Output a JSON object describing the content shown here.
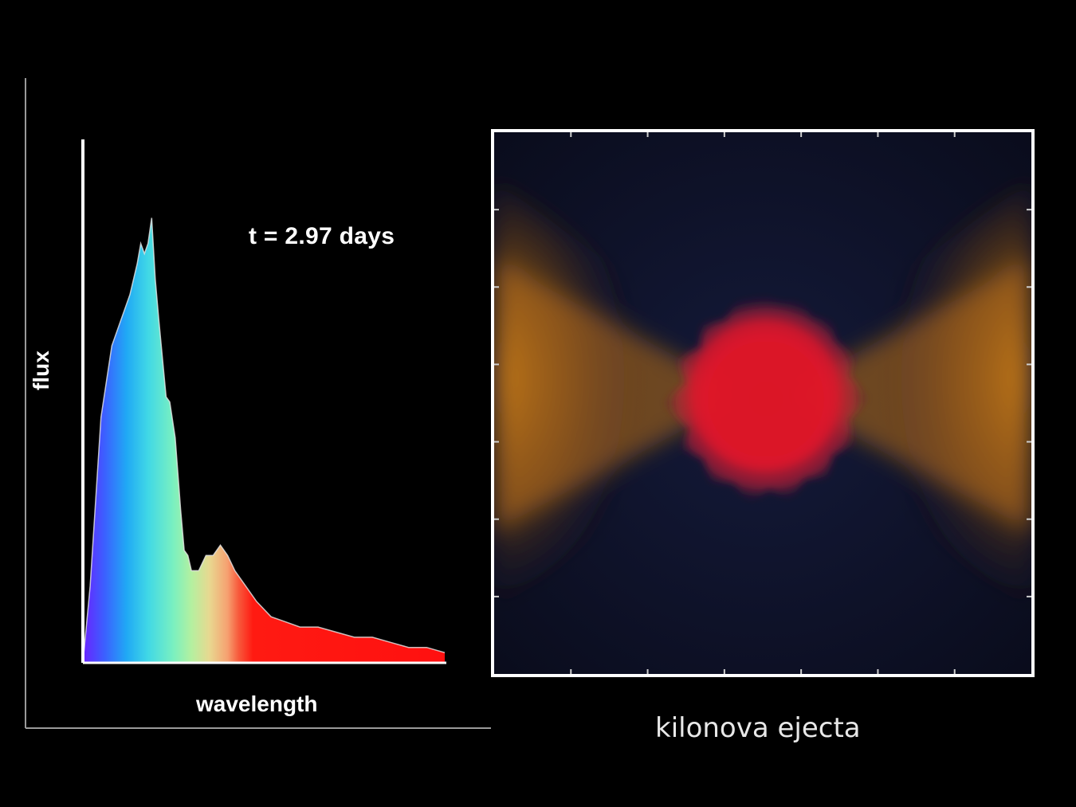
{
  "chart_data": [
    {
      "type": "area",
      "title": "",
      "annotation": "t = 2.97 days",
      "xlabel": "wavelength",
      "ylabel": "flux",
      "xlim": [
        0,
        1
      ],
      "ylim": [
        0,
        1
      ],
      "grid": false,
      "fill": "rainbow gradient (violet to red) by wavelength",
      "series": [
        {
          "x": [
            0.0,
            0.02,
            0.05,
            0.08,
            0.1,
            0.13,
            0.15,
            0.16,
            0.17,
            0.18,
            0.19,
            0.2,
            0.21,
            0.23,
            0.24,
            0.255,
            0.27,
            0.28,
            0.29,
            0.3,
            0.32,
            0.34,
            0.36,
            0.38,
            0.4,
            0.42,
            0.45,
            0.48,
            0.52,
            0.56,
            0.6,
            0.65,
            0.7,
            0.75,
            0.8,
            0.85,
            0.9,
            0.95,
            1.0
          ],
          "values": [
            0.0,
            0.15,
            0.48,
            0.62,
            0.66,
            0.72,
            0.78,
            0.82,
            0.8,
            0.82,
            0.87,
            0.75,
            0.67,
            0.52,
            0.51,
            0.44,
            0.3,
            0.22,
            0.21,
            0.18,
            0.18,
            0.21,
            0.21,
            0.23,
            0.21,
            0.18,
            0.15,
            0.12,
            0.09,
            0.08,
            0.07,
            0.07,
            0.06,
            0.05,
            0.05,
            0.04,
            0.03,
            0.03,
            0.02
          ]
        }
      ]
    }
  ],
  "right_panel": {
    "caption": "kilonova ejecta",
    "tick_count_x": 6,
    "tick_count_y": 6,
    "colors": {
      "background": "#0c0f22",
      "outer_ejecta": "#d88a1e",
      "core": "#e0182a"
    }
  }
}
